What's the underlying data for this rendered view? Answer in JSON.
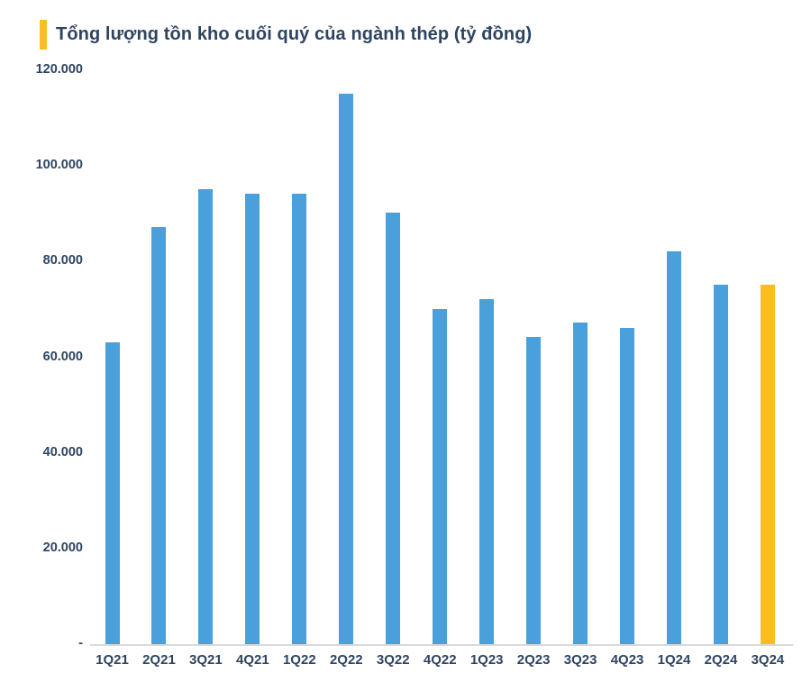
{
  "chart_data": {
    "type": "bar",
    "title": "Tổng lượng tồn kho cuối quý của ngành thép (tỷ đồng)",
    "unit": "tỷ đồng",
    "categories": [
      "1Q21",
      "2Q21",
      "3Q21",
      "4Q21",
      "1Q22",
      "2Q22",
      "3Q22",
      "4Q22",
      "1Q23",
      "2Q23",
      "3Q23",
      "4Q23",
      "1Q24",
      "2Q24",
      "3Q24"
    ],
    "values": [
      63000,
      87000,
      95000,
      94000,
      94000,
      115000,
      90000,
      70000,
      72000,
      64000,
      67000,
      66000,
      82000,
      75000,
      75000
    ],
    "highlight_index": 14,
    "y_axis": {
      "ylim": [
        0,
        120000
      ],
      "ticks": [
        {
          "value": 120000,
          "label": "120.000"
        },
        {
          "value": 100000,
          "label": "100.000"
        },
        {
          "value": 80000,
          "label": "80.000"
        },
        {
          "value": 60000,
          "label": "60.000"
        },
        {
          "value": 40000,
          "label": "40.000"
        },
        {
          "value": 20000,
          "label": "20.000"
        },
        {
          "value": 0,
          "label": "-"
        }
      ]
    },
    "grid": false,
    "legend_position": "none",
    "colors": {
      "bar_default": "#49A0DB",
      "bar_highlight": "#FCBD23",
      "title_text": "#2E4462",
      "axis_text": "#2E4462",
      "baseline": "#D9D9D9"
    }
  }
}
